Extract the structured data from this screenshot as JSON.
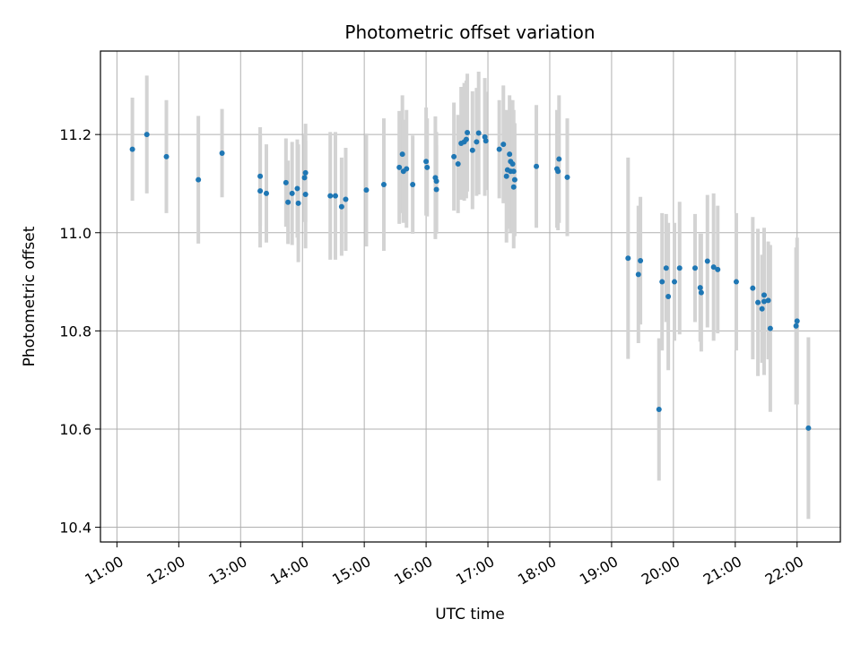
{
  "chart_data": {
    "type": "scatter",
    "title": "Photometric offset variation",
    "xlabel": "UTC time",
    "ylabel": "Photometric offset",
    "x_ticks": [
      "11:00",
      "12:00",
      "13:00",
      "14:00",
      "15:00",
      "16:00",
      "17:00",
      "18:00",
      "19:00",
      "20:00",
      "21:00",
      "22:00"
    ],
    "y_ticks": [
      "10.4",
      "10.6",
      "10.8",
      "11.0",
      "11.2"
    ],
    "xlim": [
      "10:44",
      "22:42"
    ],
    "ylim": [
      10.37,
      11.37
    ],
    "grid": true,
    "colors": {
      "points": "#1f77b4",
      "errorbars": "#d3d3d3",
      "grid": "#b0b0b0"
    },
    "points": [
      {
        "x": "11:15",
        "y": 11.17,
        "err": 0.105
      },
      {
        "x": "11:29",
        "y": 11.2,
        "err": 0.12
      },
      {
        "x": "11:48",
        "y": 11.155,
        "err": 0.115
      },
      {
        "x": "12:19",
        "y": 11.108,
        "err": 0.13
      },
      {
        "x": "12:42",
        "y": 11.162,
        "err": 0.09
      },
      {
        "x": "13:19",
        "y": 11.115,
        "err": 0.1
      },
      {
        "x": "13:19",
        "y": 11.085,
        "err": 0.115
      },
      {
        "x": "13:25",
        "y": 11.08,
        "err": 0.1
      },
      {
        "x": "13:44",
        "y": 11.102,
        "err": 0.09
      },
      {
        "x": "13:46",
        "y": 11.062,
        "err": 0.085
      },
      {
        "x": "13:50",
        "y": 11.08,
        "err": 0.105
      },
      {
        "x": "13:55",
        "y": 11.09,
        "err": 0.1
      },
      {
        "x": "13:56",
        "y": 11.06,
        "err": 0.12
      },
      {
        "x": "14:02",
        "y": 11.112,
        "err": 0.09
      },
      {
        "x": "14:03",
        "y": 11.122,
        "err": 0.1
      },
      {
        "x": "14:03",
        "y": 11.078,
        "err": 0.11
      },
      {
        "x": "14:27",
        "y": 11.075,
        "err": 0.13
      },
      {
        "x": "14:32",
        "y": 11.075,
        "err": 0.13
      },
      {
        "x": "14:38",
        "y": 11.053,
        "err": 0.1
      },
      {
        "x": "14:42",
        "y": 11.068,
        "err": 0.105
      },
      {
        "x": "15:02",
        "y": 11.087,
        "err": 0.115
      },
      {
        "x": "15:19",
        "y": 11.098,
        "err": 0.135
      },
      {
        "x": "15:34",
        "y": 11.133,
        "err": 0.115
      },
      {
        "x": "15:37",
        "y": 11.16,
        "err": 0.12
      },
      {
        "x": "15:38",
        "y": 11.125,
        "err": 0.105
      },
      {
        "x": "15:41",
        "y": 11.13,
        "err": 0.12
      },
      {
        "x": "15:47",
        "y": 11.098,
        "err": 0.1
      },
      {
        "x": "16:00",
        "y": 11.145,
        "err": 0.11
      },
      {
        "x": "16:01",
        "y": 11.133,
        "err": 0.1
      },
      {
        "x": "16:09",
        "y": 11.112,
        "err": 0.125
      },
      {
        "x": "16:10",
        "y": 11.088,
        "err": 0.09
      },
      {
        "x": "16:10",
        "y": 11.105,
        "err": 0.1
      },
      {
        "x": "16:27",
        "y": 11.155,
        "err": 0.11
      },
      {
        "x": "16:31",
        "y": 11.14,
        "err": 0.1
      },
      {
        "x": "16:34",
        "y": 11.182,
        "err": 0.115
      },
      {
        "x": "16:37",
        "y": 11.185,
        "err": 0.12
      },
      {
        "x": "16:39",
        "y": 11.19,
        "err": 0.12
      },
      {
        "x": "16:40",
        "y": 11.204,
        "err": 0.12
      },
      {
        "x": "16:45",
        "y": 11.168,
        "err": 0.12
      },
      {
        "x": "16:49",
        "y": 11.185,
        "err": 0.11
      },
      {
        "x": "16:51",
        "y": 11.203,
        "err": 0.125
      },
      {
        "x": "16:57",
        "y": 11.195,
        "err": 0.12
      },
      {
        "x": "16:58",
        "y": 11.187,
        "err": 0.1
      },
      {
        "x": "17:11",
        "y": 11.17,
        "err": 0.1
      },
      {
        "x": "17:15",
        "y": 11.18,
        "err": 0.12
      },
      {
        "x": "17:18",
        "y": 11.115,
        "err": 0.135
      },
      {
        "x": "17:19",
        "y": 11.128,
        "err": 0.12
      },
      {
        "x": "17:21",
        "y": 11.16,
        "err": 0.12
      },
      {
        "x": "17:22",
        "y": 11.145,
        "err": 0.125
      },
      {
        "x": "17:22",
        "y": 11.125,
        "err": 0.125
      },
      {
        "x": "17:24",
        "y": 11.14,
        "err": 0.13
      },
      {
        "x": "17:25",
        "y": 11.125,
        "err": 0.125
      },
      {
        "x": "17:25",
        "y": 11.093,
        "err": 0.125
      },
      {
        "x": "17:26",
        "y": 11.108,
        "err": 0.115
      },
      {
        "x": "17:47",
        "y": 11.135,
        "err": 0.125
      },
      {
        "x": "18:07",
        "y": 11.13,
        "err": 0.12
      },
      {
        "x": "18:08",
        "y": 11.125,
        "err": 0.12
      },
      {
        "x": "18:09",
        "y": 11.15,
        "err": 0.13
      },
      {
        "x": "18:17",
        "y": 11.113,
        "err": 0.12
      },
      {
        "x": "19:16",
        "y": 10.948,
        "err": 0.205
      },
      {
        "x": "19:26",
        "y": 10.915,
        "err": 0.14
      },
      {
        "x": "19:28",
        "y": 10.943,
        "err": 0.13
      },
      {
        "x": "19:46",
        "y": 10.64,
        "err": 0.145
      },
      {
        "x": "19:49",
        "y": 10.9,
        "err": 0.14
      },
      {
        "x": "19:53",
        "y": 10.928,
        "err": 0.11
      },
      {
        "x": "19:55",
        "y": 10.87,
        "err": 0.15
      },
      {
        "x": "20:01",
        "y": 10.9,
        "err": 0.12
      },
      {
        "x": "20:06",
        "y": 10.928,
        "err": 0.135
      },
      {
        "x": "20:21",
        "y": 10.928,
        "err": 0.11
      },
      {
        "x": "20:26",
        "y": 10.888,
        "err": 0.11
      },
      {
        "x": "20:27",
        "y": 10.878,
        "err": 0.12
      },
      {
        "x": "20:33",
        "y": 10.942,
        "err": 0.135
      },
      {
        "x": "20:39",
        "y": 10.93,
        "err": 0.15
      },
      {
        "x": "20:43",
        "y": 10.925,
        "err": 0.13
      },
      {
        "x": "21:01",
        "y": 10.9,
        "err": 0.14
      },
      {
        "x": "21:17",
        "y": 10.887,
        "err": 0.145
      },
      {
        "x": "21:22",
        "y": 10.858,
        "err": 0.15
      },
      {
        "x": "21:26",
        "y": 10.845,
        "err": 0.11
      },
      {
        "x": "21:28",
        "y": 10.86,
        "err": 0.15
      },
      {
        "x": "21:28",
        "y": 10.873,
        "err": 0.13
      },
      {
        "x": "21:32",
        "y": 10.862,
        "err": 0.12
      },
      {
        "x": "21:34",
        "y": 10.805,
        "err": 0.17
      },
      {
        "x": "21:59",
        "y": 10.81,
        "err": 0.16
      },
      {
        "x": "22:00",
        "y": 10.82,
        "err": 0.17
      },
      {
        "x": "22:11",
        "y": 10.602,
        "err": 0.185
      }
    ]
  }
}
